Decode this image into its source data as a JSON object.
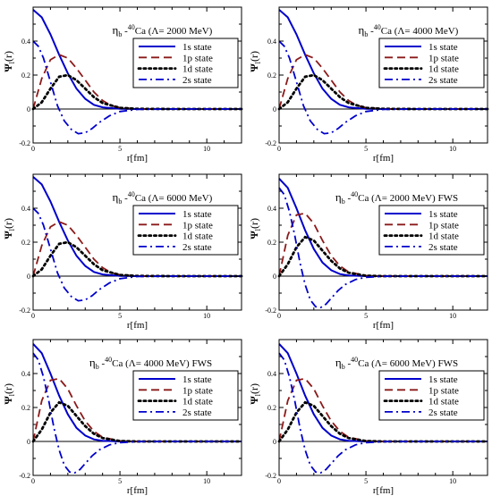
{
  "figure": {
    "axis_label_y": "Ψl(r)",
    "axis_label_x": "r[fm]"
  },
  "chart_data": [
    {
      "type": "line",
      "title": "ηb -40Ca (Λ= 2000 MeV)",
      "xlabel": "r[fm]",
      "ylabel": "Ψl(r)",
      "xlim": [
        0,
        12
      ],
      "ylim": [
        -0.2,
        0.6
      ],
      "xticks": [
        0,
        5,
        10
      ],
      "yticks": [
        -0.2,
        0,
        0.2,
        0.4
      ],
      "legend": "upper-right",
      "series": [
        {
          "name": "1s state",
          "style": "solid",
          "color": "#0000cc",
          "x": [
            0,
            0.5,
            1,
            1.5,
            2,
            2.5,
            3,
            3.5,
            4,
            5,
            6,
            8,
            12
          ],
          "y": [
            0.585,
            0.54,
            0.44,
            0.32,
            0.21,
            0.12,
            0.06,
            0.025,
            0.01,
            0.001,
            0,
            0,
            0
          ]
        },
        {
          "name": "1p state",
          "style": "dashed",
          "color": "#8b1a1a",
          "x": [
            0,
            0.5,
            1,
            1.5,
            2,
            2.5,
            3,
            3.5,
            4,
            4.5,
            5,
            6,
            8,
            12
          ],
          "y": [
            0,
            0.18,
            0.29,
            0.32,
            0.3,
            0.24,
            0.17,
            0.1,
            0.05,
            0.02,
            0.008,
            0.001,
            0,
            0
          ]
        },
        {
          "name": "1d state",
          "style": "dotted",
          "color": "#000000",
          "x": [
            0,
            0.5,
            1,
            1.5,
            2,
            2.5,
            3,
            3.5,
            4,
            5,
            6,
            8,
            12
          ],
          "y": [
            0,
            0.04,
            0.12,
            0.19,
            0.2,
            0.17,
            0.12,
            0.07,
            0.035,
            0.007,
            0.001,
            0,
            0
          ]
        },
        {
          "name": "2s state",
          "style": "dashdot",
          "color": "#0000cc",
          "x": [
            0,
            0.3,
            0.6,
            1,
            1.4,
            1.8,
            2.2,
            2.6,
            3,
            3.4,
            3.8,
            4.4,
            5,
            6,
            8,
            12
          ],
          "y": [
            0.4,
            0.37,
            0.3,
            0.16,
            0.02,
            -0.07,
            -0.12,
            -0.145,
            -0.14,
            -0.115,
            -0.08,
            -0.04,
            -0.015,
            -0.002,
            0,
            0
          ]
        }
      ]
    },
    {
      "type": "line",
      "title": "ηb -40Ca (Λ= 4000 MeV)",
      "xlabel": "r[fm]",
      "ylabel": "Ψl(r)",
      "xlim": [
        0,
        12
      ],
      "ylim": [
        -0.2,
        0.6
      ],
      "xticks": [
        0,
        5,
        10
      ],
      "yticks": [
        -0.2,
        0,
        0.2,
        0.4
      ],
      "legend": "upper-right",
      "series": [
        {
          "name": "1s state",
          "style": "solid",
          "color": "#0000cc",
          "x": [
            0,
            0.5,
            1,
            1.5,
            2,
            2.5,
            3,
            3.5,
            4,
            5,
            6,
            8,
            12
          ],
          "y": [
            0.585,
            0.54,
            0.44,
            0.32,
            0.21,
            0.12,
            0.06,
            0.025,
            0.01,
            0.001,
            0,
            0,
            0
          ]
        },
        {
          "name": "1p state",
          "style": "dashed",
          "color": "#8b1a1a",
          "x": [
            0,
            0.5,
            1,
            1.5,
            2,
            2.5,
            3,
            3.5,
            4,
            4.5,
            5,
            6,
            8,
            12
          ],
          "y": [
            0,
            0.18,
            0.29,
            0.32,
            0.3,
            0.24,
            0.17,
            0.1,
            0.05,
            0.02,
            0.008,
            0.001,
            0,
            0
          ]
        },
        {
          "name": "1d state",
          "style": "dotted",
          "color": "#000000",
          "x": [
            0,
            0.5,
            1,
            1.5,
            2,
            2.5,
            3,
            3.5,
            4,
            5,
            6,
            8,
            12
          ],
          "y": [
            0,
            0.04,
            0.12,
            0.19,
            0.2,
            0.17,
            0.12,
            0.07,
            0.035,
            0.007,
            0.001,
            0,
            0
          ]
        },
        {
          "name": "2s state",
          "style": "dashdot",
          "color": "#0000cc",
          "x": [
            0,
            0.3,
            0.6,
            1,
            1.4,
            1.8,
            2.2,
            2.6,
            3,
            3.4,
            3.8,
            4.4,
            5,
            6,
            8,
            12
          ],
          "y": [
            0.4,
            0.37,
            0.3,
            0.16,
            0.02,
            -0.07,
            -0.12,
            -0.145,
            -0.14,
            -0.115,
            -0.08,
            -0.04,
            -0.015,
            -0.002,
            0,
            0
          ]
        }
      ]
    },
    {
      "type": "line",
      "title": "ηb -40Ca (Λ= 6000 MeV)",
      "xlabel": "r[fm]",
      "ylabel": "Ψl(r)",
      "xlim": [
        0,
        12
      ],
      "ylim": [
        -0.2,
        0.6
      ],
      "xticks": [
        0,
        5,
        10
      ],
      "yticks": [
        -0.2,
        0,
        0.2,
        0.4
      ],
      "legend": "upper-right",
      "series": [
        {
          "name": "1s state",
          "style": "solid",
          "color": "#0000cc",
          "x": [
            0,
            0.5,
            1,
            1.5,
            2,
            2.5,
            3,
            3.5,
            4,
            5,
            6,
            8,
            12
          ],
          "y": [
            0.585,
            0.54,
            0.44,
            0.32,
            0.21,
            0.12,
            0.06,
            0.025,
            0.01,
            0.001,
            0,
            0,
            0
          ]
        },
        {
          "name": "1p state",
          "style": "dashed",
          "color": "#8b1a1a",
          "x": [
            0,
            0.5,
            1,
            1.5,
            2,
            2.5,
            3,
            3.5,
            4,
            4.5,
            5,
            6,
            8,
            12
          ],
          "y": [
            0,
            0.18,
            0.29,
            0.32,
            0.3,
            0.24,
            0.17,
            0.1,
            0.05,
            0.02,
            0.008,
            0.001,
            0,
            0
          ]
        },
        {
          "name": "1d state",
          "style": "dotted",
          "color": "#000000",
          "x": [
            0,
            0.5,
            1,
            1.5,
            2,
            2.5,
            3,
            3.5,
            4,
            5,
            6,
            8,
            12
          ],
          "y": [
            0,
            0.04,
            0.12,
            0.19,
            0.2,
            0.17,
            0.12,
            0.07,
            0.035,
            0.007,
            0.001,
            0,
            0
          ]
        },
        {
          "name": "2s state",
          "style": "dashdot",
          "color": "#0000cc",
          "x": [
            0,
            0.3,
            0.6,
            1,
            1.4,
            1.8,
            2.2,
            2.6,
            3,
            3.4,
            3.8,
            4.4,
            5,
            6,
            8,
            12
          ],
          "y": [
            0.4,
            0.37,
            0.3,
            0.16,
            0.02,
            -0.07,
            -0.12,
            -0.145,
            -0.14,
            -0.115,
            -0.08,
            -0.04,
            -0.015,
            -0.002,
            0,
            0
          ]
        }
      ]
    },
    {
      "type": "line",
      "title": "ηb -40Ca (Λ= 2000 MeV) FWS",
      "xlabel": "r[fm]",
      "ylabel": "Ψl(r)",
      "xlim": [
        0,
        12
      ],
      "ylim": [
        -0.2,
        0.6
      ],
      "xticks": [
        0,
        5,
        10
      ],
      "yticks": [
        -0.2,
        0,
        0.2,
        0.4
      ],
      "legend": "upper-right",
      "series": [
        {
          "name": "1s state",
          "style": "solid",
          "color": "#0000cc",
          "x": [
            0,
            0.5,
            1,
            1.5,
            2,
            2.5,
            3,
            3.5,
            4,
            5,
            6,
            8,
            12
          ],
          "y": [
            0.575,
            0.52,
            0.4,
            0.27,
            0.16,
            0.08,
            0.035,
            0.012,
            0.004,
            0,
            0,
            0,
            0
          ]
        },
        {
          "name": "1p state",
          "style": "dashed",
          "color": "#8b1a1a",
          "x": [
            0,
            0.5,
            1,
            1.5,
            2,
            2.5,
            3,
            3.5,
            4,
            5,
            6,
            8,
            12
          ],
          "y": [
            0,
            0.24,
            0.36,
            0.37,
            0.31,
            0.21,
            0.12,
            0.06,
            0.025,
            0.003,
            0,
            0,
            0
          ]
        },
        {
          "name": "1d state",
          "style": "dotted",
          "color": "#000000",
          "x": [
            0,
            0.5,
            1,
            1.5,
            2,
            2.5,
            3,
            3.5,
            4,
            5,
            6,
            8,
            12
          ],
          "y": [
            0,
            0.07,
            0.17,
            0.23,
            0.21,
            0.15,
            0.09,
            0.045,
            0.02,
            0.002,
            0,
            0,
            0
          ]
        },
        {
          "name": "2s state",
          "style": "dashdot",
          "color": "#0000cc",
          "x": [
            0,
            0.3,
            0.6,
            0.9,
            1.2,
            1.5,
            1.8,
            2.1,
            2.4,
            2.7,
            3,
            3.4,
            3.8,
            4.4,
            5,
            6,
            8,
            12
          ],
          "y": [
            0.52,
            0.48,
            0.38,
            0.24,
            0.08,
            -0.05,
            -0.14,
            -0.18,
            -0.185,
            -0.165,
            -0.13,
            -0.085,
            -0.05,
            -0.02,
            -0.007,
            -0.001,
            0,
            0
          ]
        }
      ]
    },
    {
      "type": "line",
      "title": "ηb -40Ca (Λ= 4000 MeV) FWS",
      "xlabel": "r[fm]",
      "ylabel": "Ψl(r)",
      "xlim": [
        0,
        12
      ],
      "ylim": [
        -0.2,
        0.6
      ],
      "xticks": [
        0,
        5,
        10
      ],
      "yticks": [
        -0.2,
        0,
        0.2,
        0.4
      ],
      "legend": "upper-right",
      "series": [
        {
          "name": "1s state",
          "style": "solid",
          "color": "#0000cc",
          "x": [
            0,
            0.5,
            1,
            1.5,
            2,
            2.5,
            3,
            3.5,
            4,
            5,
            6,
            8,
            12
          ],
          "y": [
            0.575,
            0.52,
            0.4,
            0.27,
            0.16,
            0.08,
            0.035,
            0.012,
            0.004,
            0,
            0,
            0,
            0
          ]
        },
        {
          "name": "1p state",
          "style": "dashed",
          "color": "#8b1a1a",
          "x": [
            0,
            0.5,
            1,
            1.5,
            2,
            2.5,
            3,
            3.5,
            4,
            5,
            6,
            8,
            12
          ],
          "y": [
            0,
            0.24,
            0.36,
            0.37,
            0.31,
            0.21,
            0.12,
            0.06,
            0.025,
            0.003,
            0,
            0,
            0
          ]
        },
        {
          "name": "1d state",
          "style": "dotted",
          "color": "#000000",
          "x": [
            0,
            0.5,
            1,
            1.5,
            2,
            2.5,
            3,
            3.5,
            4,
            5,
            6,
            8,
            12
          ],
          "y": [
            0,
            0.07,
            0.17,
            0.23,
            0.21,
            0.15,
            0.09,
            0.045,
            0.02,
            0.002,
            0,
            0,
            0
          ]
        },
        {
          "name": "2s state",
          "style": "dashdot",
          "color": "#0000cc",
          "x": [
            0,
            0.3,
            0.6,
            0.9,
            1.2,
            1.5,
            1.8,
            2.1,
            2.4,
            2.7,
            3,
            3.4,
            3.8,
            4.4,
            5,
            6,
            8,
            12
          ],
          "y": [
            0.52,
            0.48,
            0.38,
            0.24,
            0.08,
            -0.05,
            -0.14,
            -0.18,
            -0.185,
            -0.165,
            -0.13,
            -0.085,
            -0.05,
            -0.02,
            -0.007,
            -0.001,
            0,
            0
          ]
        }
      ]
    },
    {
      "type": "line",
      "title": "ηb -40Ca (Λ= 6000 MeV) FWS",
      "xlabel": "r[fm]",
      "ylabel": "Ψl(r)",
      "xlim": [
        0,
        12
      ],
      "ylim": [
        -0.2,
        0.6
      ],
      "xticks": [
        0,
        5,
        10
      ],
      "yticks": [
        -0.2,
        0,
        0.2,
        0.4
      ],
      "legend": "upper-right",
      "series": [
        {
          "name": "1s state",
          "style": "solid",
          "color": "#0000cc",
          "x": [
            0,
            0.5,
            1,
            1.5,
            2,
            2.5,
            3,
            3.5,
            4,
            5,
            6,
            8,
            12
          ],
          "y": [
            0.575,
            0.52,
            0.4,
            0.27,
            0.16,
            0.08,
            0.035,
            0.012,
            0.004,
            0,
            0,
            0,
            0
          ]
        },
        {
          "name": "1p state",
          "style": "dashed",
          "color": "#8b1a1a",
          "x": [
            0,
            0.5,
            1,
            1.5,
            2,
            2.5,
            3,
            3.5,
            4,
            5,
            6,
            8,
            12
          ],
          "y": [
            0,
            0.24,
            0.36,
            0.37,
            0.31,
            0.21,
            0.12,
            0.06,
            0.025,
            0.003,
            0,
            0,
            0
          ]
        },
        {
          "name": "1d state",
          "style": "dotted",
          "color": "#000000",
          "x": [
            0,
            0.5,
            1,
            1.5,
            2,
            2.5,
            3,
            3.5,
            4,
            5,
            6,
            8,
            12
          ],
          "y": [
            0,
            0.07,
            0.17,
            0.23,
            0.21,
            0.15,
            0.09,
            0.045,
            0.02,
            0.002,
            0,
            0,
            0
          ]
        },
        {
          "name": "2s state",
          "style": "dashdot",
          "color": "#0000cc",
          "x": [
            0,
            0.3,
            0.6,
            0.9,
            1.2,
            1.5,
            1.8,
            2.1,
            2.4,
            2.7,
            3,
            3.4,
            3.8,
            4.4,
            5,
            6,
            8,
            12
          ],
          "y": [
            0.52,
            0.48,
            0.38,
            0.24,
            0.08,
            -0.05,
            -0.14,
            -0.18,
            -0.185,
            -0.165,
            -0.13,
            -0.085,
            -0.05,
            -0.02,
            -0.007,
            -0.001,
            0,
            0
          ]
        }
      ]
    }
  ]
}
